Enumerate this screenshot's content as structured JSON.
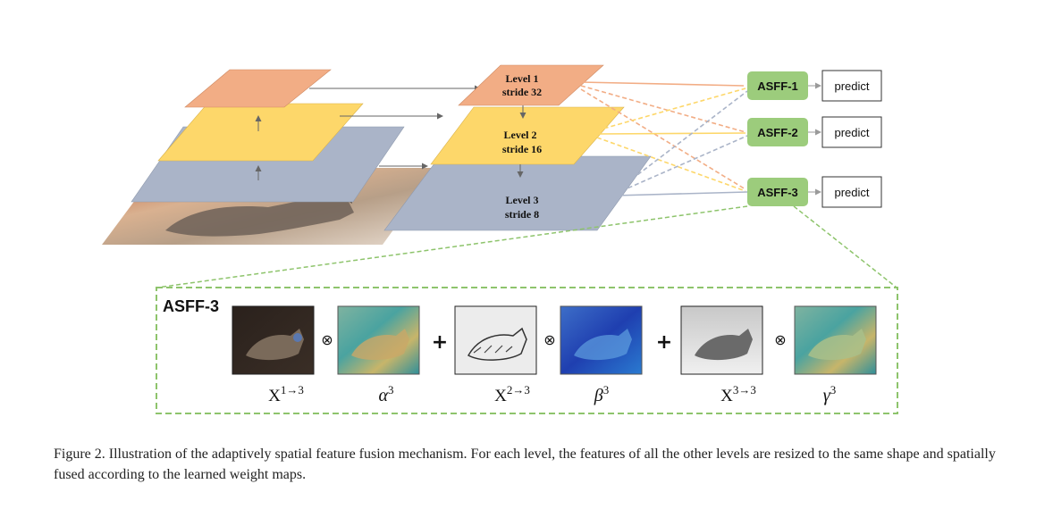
{
  "levels": [
    {
      "name": "Level 1",
      "stride": "stride 32",
      "color": "#f2ad85"
    },
    {
      "name": "Level 2",
      "stride": "stride 16",
      "color": "#fdd76a"
    },
    {
      "name": "Level 3",
      "stride": "stride 8",
      "color": "#aab4c8"
    }
  ],
  "asff_modules": [
    {
      "label": "ASFF-1",
      "output": "predict"
    },
    {
      "label": "ASFF-2",
      "output": "predict"
    },
    {
      "label": "ASFF-3",
      "output": "predict"
    }
  ],
  "detail": {
    "title": "ASFF-3",
    "operators": {
      "multiply": "⊗",
      "add": "+"
    },
    "terms": [
      {
        "base": "X",
        "sup": "1→3",
        "kind": "feature",
        "tone": "dark"
      },
      {
        "base": "α",
        "sup": "3",
        "kind": "weight",
        "tone": "teal"
      },
      {
        "base": "X",
        "sup": "2→3",
        "kind": "feature",
        "tone": "sketch"
      },
      {
        "base": "β",
        "sup": "3",
        "kind": "weight",
        "tone": "blue"
      },
      {
        "base": "X",
        "sup": "3→3",
        "kind": "feature",
        "tone": "gray"
      },
      {
        "base": "γ",
        "sup": "3",
        "kind": "weight",
        "tone": "teal"
      }
    ]
  },
  "colors": {
    "asff_box": "#9ccc7c",
    "dashed_frame": "#8ec46c",
    "arrow": "#666666"
  },
  "caption": "Figure 2. Illustration of the adaptively spatial feature fusion mechanism. For each level, the features of all the other levels are resized to the same shape and spatially fused according to the learned weight maps."
}
